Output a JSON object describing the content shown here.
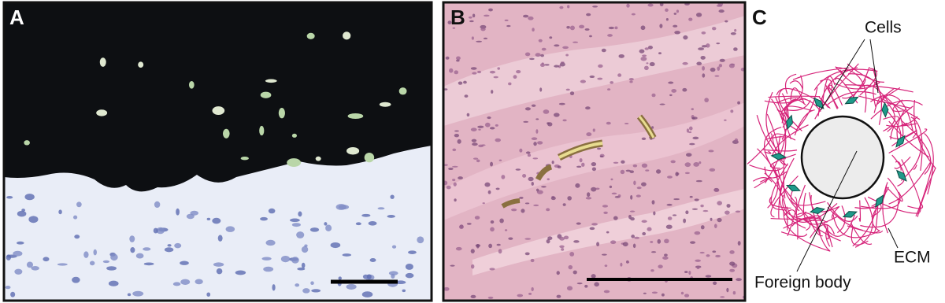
{
  "panels": [
    {
      "label": "A"
    },
    {
      "label": "B"
    },
    {
      "label": "C",
      "annotations": [
        "Cells",
        "ECM",
        "Foreign body"
      ]
    }
  ]
}
